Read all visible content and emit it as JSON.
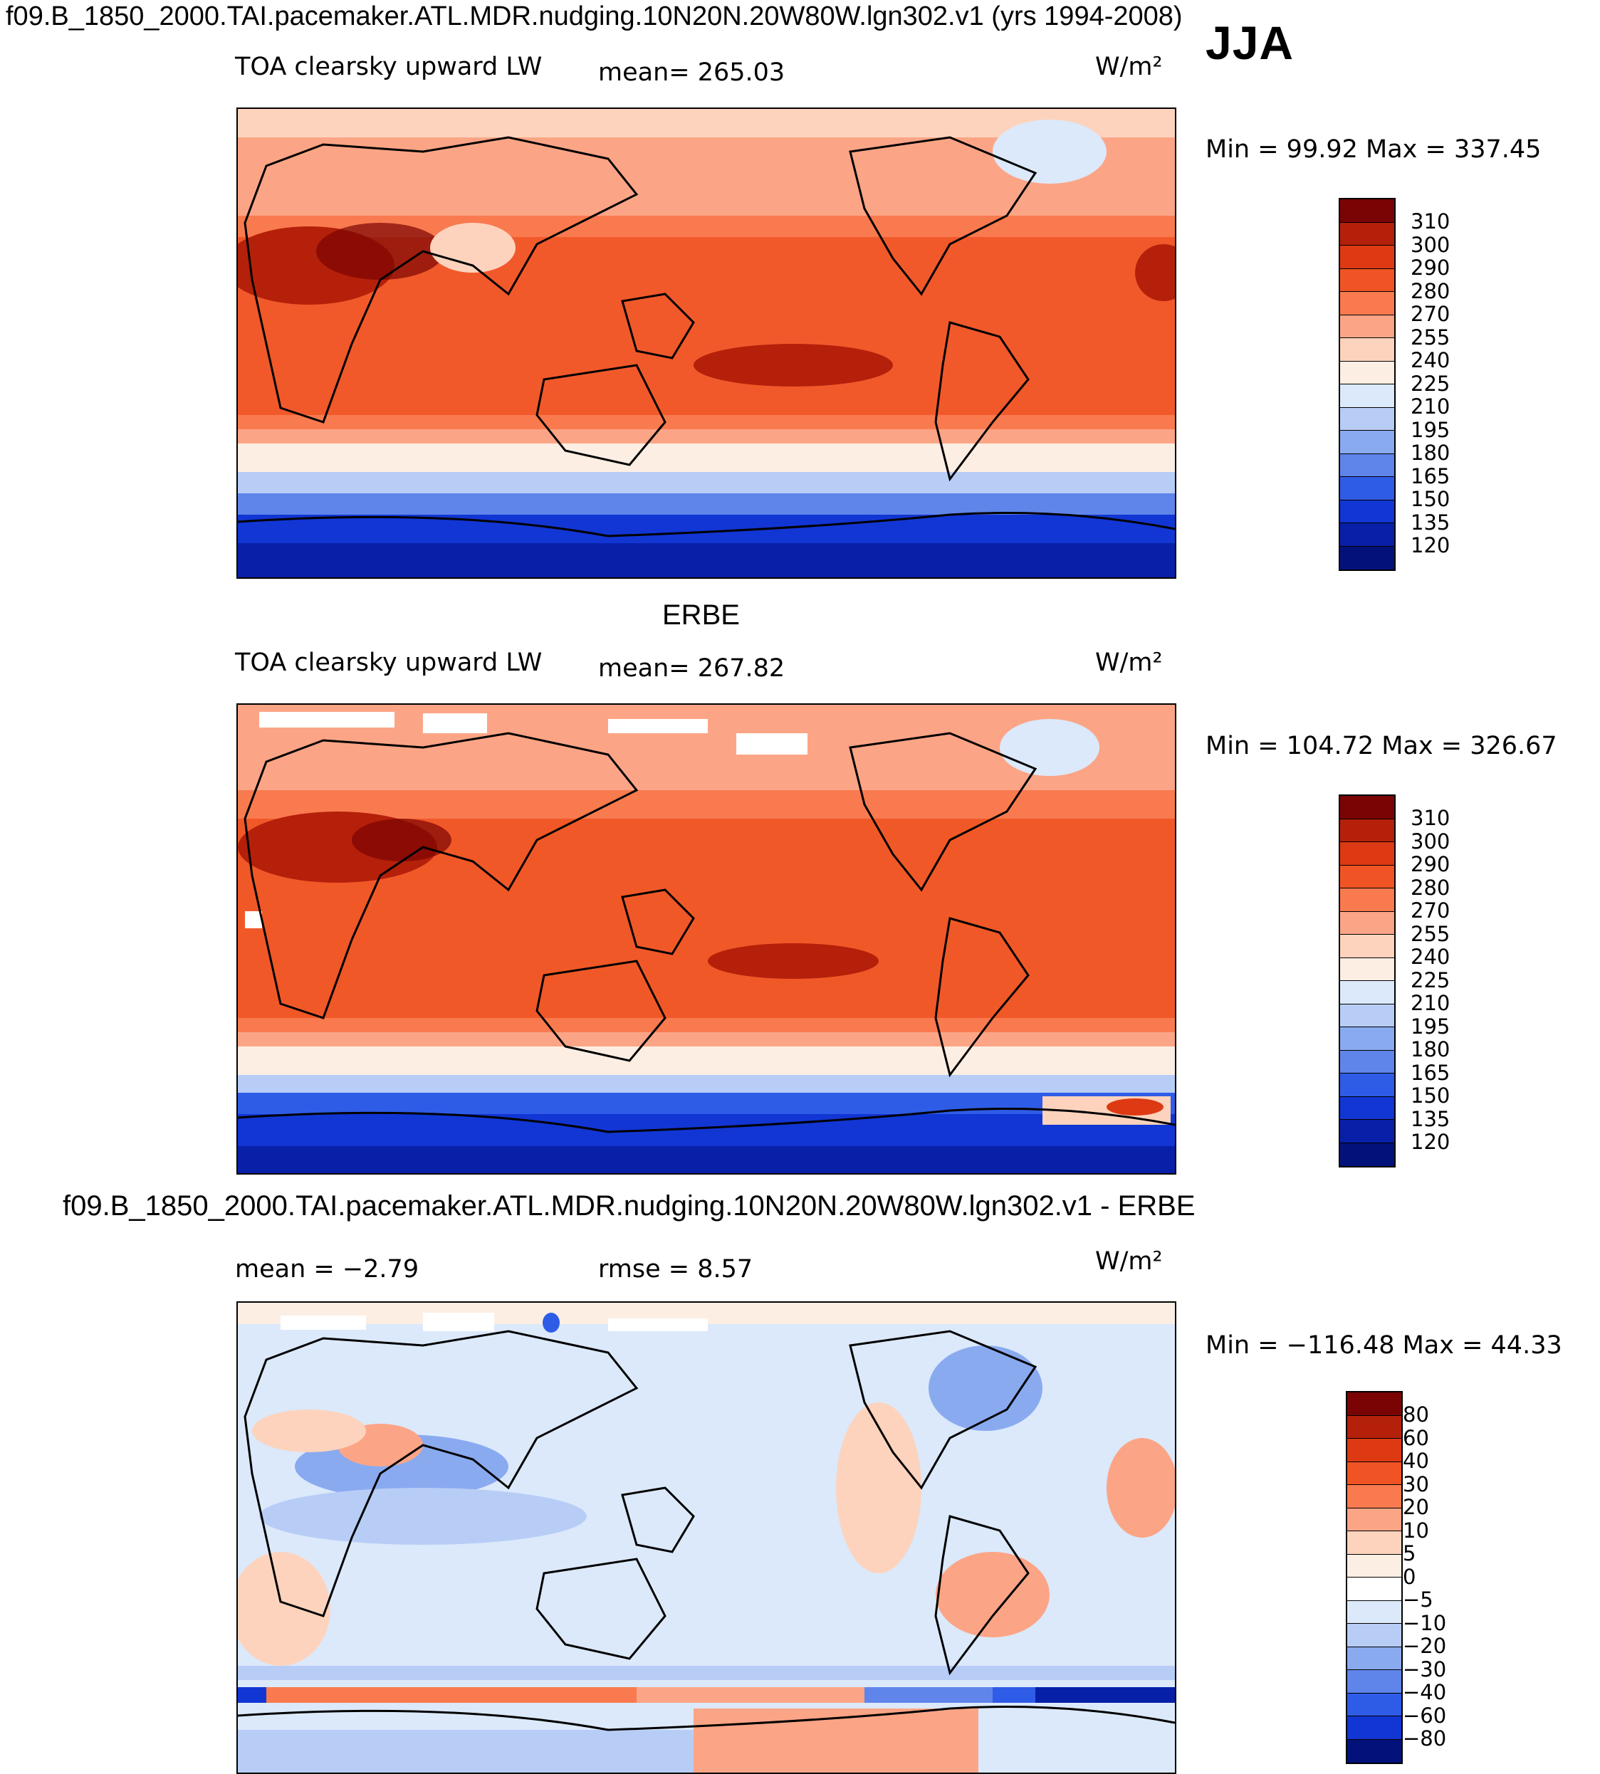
{
  "header": {
    "title": "f09.B_1850_2000.TAI.pacemaker.ATL.MDR.nudging.10N20N.20W80W.lgn302.v1 (yrs 1994-2008)",
    "season": "JJA"
  },
  "panels": [
    {
      "id": "model",
      "subtitle": "",
      "variable": "TOA clearsky upward LW",
      "stat_text": "mean=  265.03",
      "units": "W/m²",
      "minmax": "Min =   99.92  Max =  337.45",
      "colorbar": {
        "labels": [
          "310",
          "300",
          "290",
          "280",
          "270",
          "255",
          "240",
          "225",
          "210",
          "195",
          "180",
          "165",
          "150",
          "135",
          "120"
        ],
        "colors": [
          "#7a0403",
          "#b5200a",
          "#dd3a14",
          "#f05424",
          "#f97a4f",
          "#fca586",
          "#fdd3bd",
          "#fdeee3",
          "#dbe9fb",
          "#b8cdf6",
          "#8aaaf0",
          "#5f85ea",
          "#2f5ce6",
          "#1136d4",
          "#0820a8",
          "#03127a"
        ]
      }
    },
    {
      "id": "obs",
      "subtitle": "ERBE",
      "variable": "TOA clearsky upward LW",
      "stat_text": "mean=  267.82",
      "units": "W/m²",
      "minmax": "Min =  104.72  Max =  326.67",
      "colorbar": {
        "labels": [
          "310",
          "300",
          "290",
          "280",
          "270",
          "255",
          "240",
          "225",
          "210",
          "195",
          "180",
          "165",
          "150",
          "135",
          "120"
        ],
        "colors": [
          "#7a0403",
          "#b5200a",
          "#dd3a14",
          "#f05424",
          "#f97a4f",
          "#fca586",
          "#fdd3bd",
          "#fdeee3",
          "#dbe9fb",
          "#b8cdf6",
          "#8aaaf0",
          "#5f85ea",
          "#2f5ce6",
          "#1136d4",
          "#0820a8",
          "#03127a"
        ]
      }
    },
    {
      "id": "diff",
      "subtitle": "f09.B_1850_2000.TAI.pacemaker.ATL.MDR.nudging.10N20N.20W80W.lgn302.v1 - ERBE",
      "mean_text": "mean =   −2.79",
      "rmse_text": "rmse =     8.57",
      "units": "W/m²",
      "minmax": "Min = −116.48  Max =   44.33",
      "colorbar": {
        "labels": [
          "80",
          "60",
          "40",
          "30",
          "20",
          "10",
          "5",
          "0",
          "−5",
          "−10",
          "−20",
          "−30",
          "−40",
          "−60",
          "−80"
        ],
        "colors": [
          "#7a0403",
          "#b5200a",
          "#dd3a14",
          "#f05424",
          "#f97a4f",
          "#fca586",
          "#fdd3bd",
          "#fdeee3",
          "#ffffff",
          "#dbe9fb",
          "#b8cdf6",
          "#8aaaf0",
          "#5f85ea",
          "#2f5ce6",
          "#1136d4",
          "#03127a"
        ]
      }
    }
  ]
}
